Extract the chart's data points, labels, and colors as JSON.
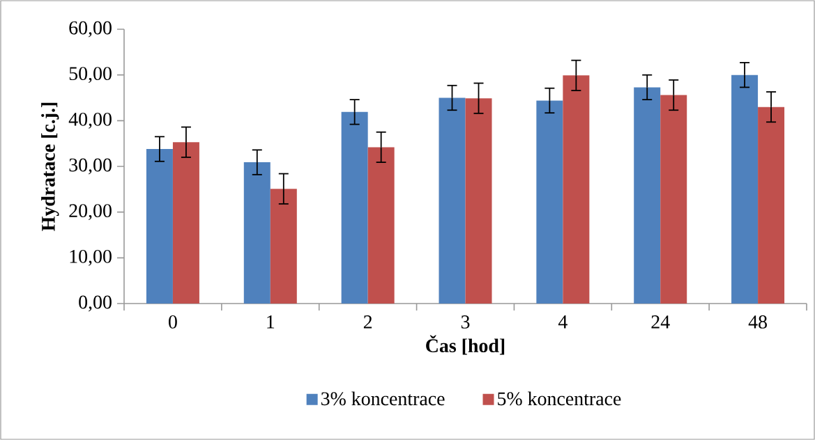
{
  "chart_data": {
    "type": "bar",
    "xlabel": "Čas [hod]",
    "ylabel": "Hydratace [c.j.]",
    "categories": [
      "0",
      "1",
      "2",
      "3",
      "4",
      "24",
      "48"
    ],
    "series": [
      {
        "name": "3% koncentrace",
        "color": "#4f81bd",
        "values": [
          33.8,
          30.9,
          41.9,
          45.0,
          44.4,
          47.3,
          50.0
        ],
        "errors": [
          2.7,
          2.7,
          2.7,
          2.7,
          2.7,
          2.7,
          2.7
        ]
      },
      {
        "name": "5% koncentrace",
        "color": "#c0504d",
        "values": [
          35.3,
          25.1,
          34.2,
          44.9,
          49.9,
          45.6,
          43.0
        ],
        "errors": [
          3.3,
          3.3,
          3.3,
          3.3,
          3.3,
          3.3,
          3.3
        ]
      }
    ],
    "ylim": [
      0,
      60
    ],
    "yticks": [
      {
        "value": 0,
        "label": "0,00"
      },
      {
        "value": 10,
        "label": "10,00"
      },
      {
        "value": 20,
        "label": "20,00"
      },
      {
        "value": 30,
        "label": "30,00"
      },
      {
        "value": 40,
        "label": "40,00"
      },
      {
        "value": 50,
        "label": "50,00"
      },
      {
        "value": 60,
        "label": "60,00"
      }
    ],
    "legend": "bottom"
  }
}
